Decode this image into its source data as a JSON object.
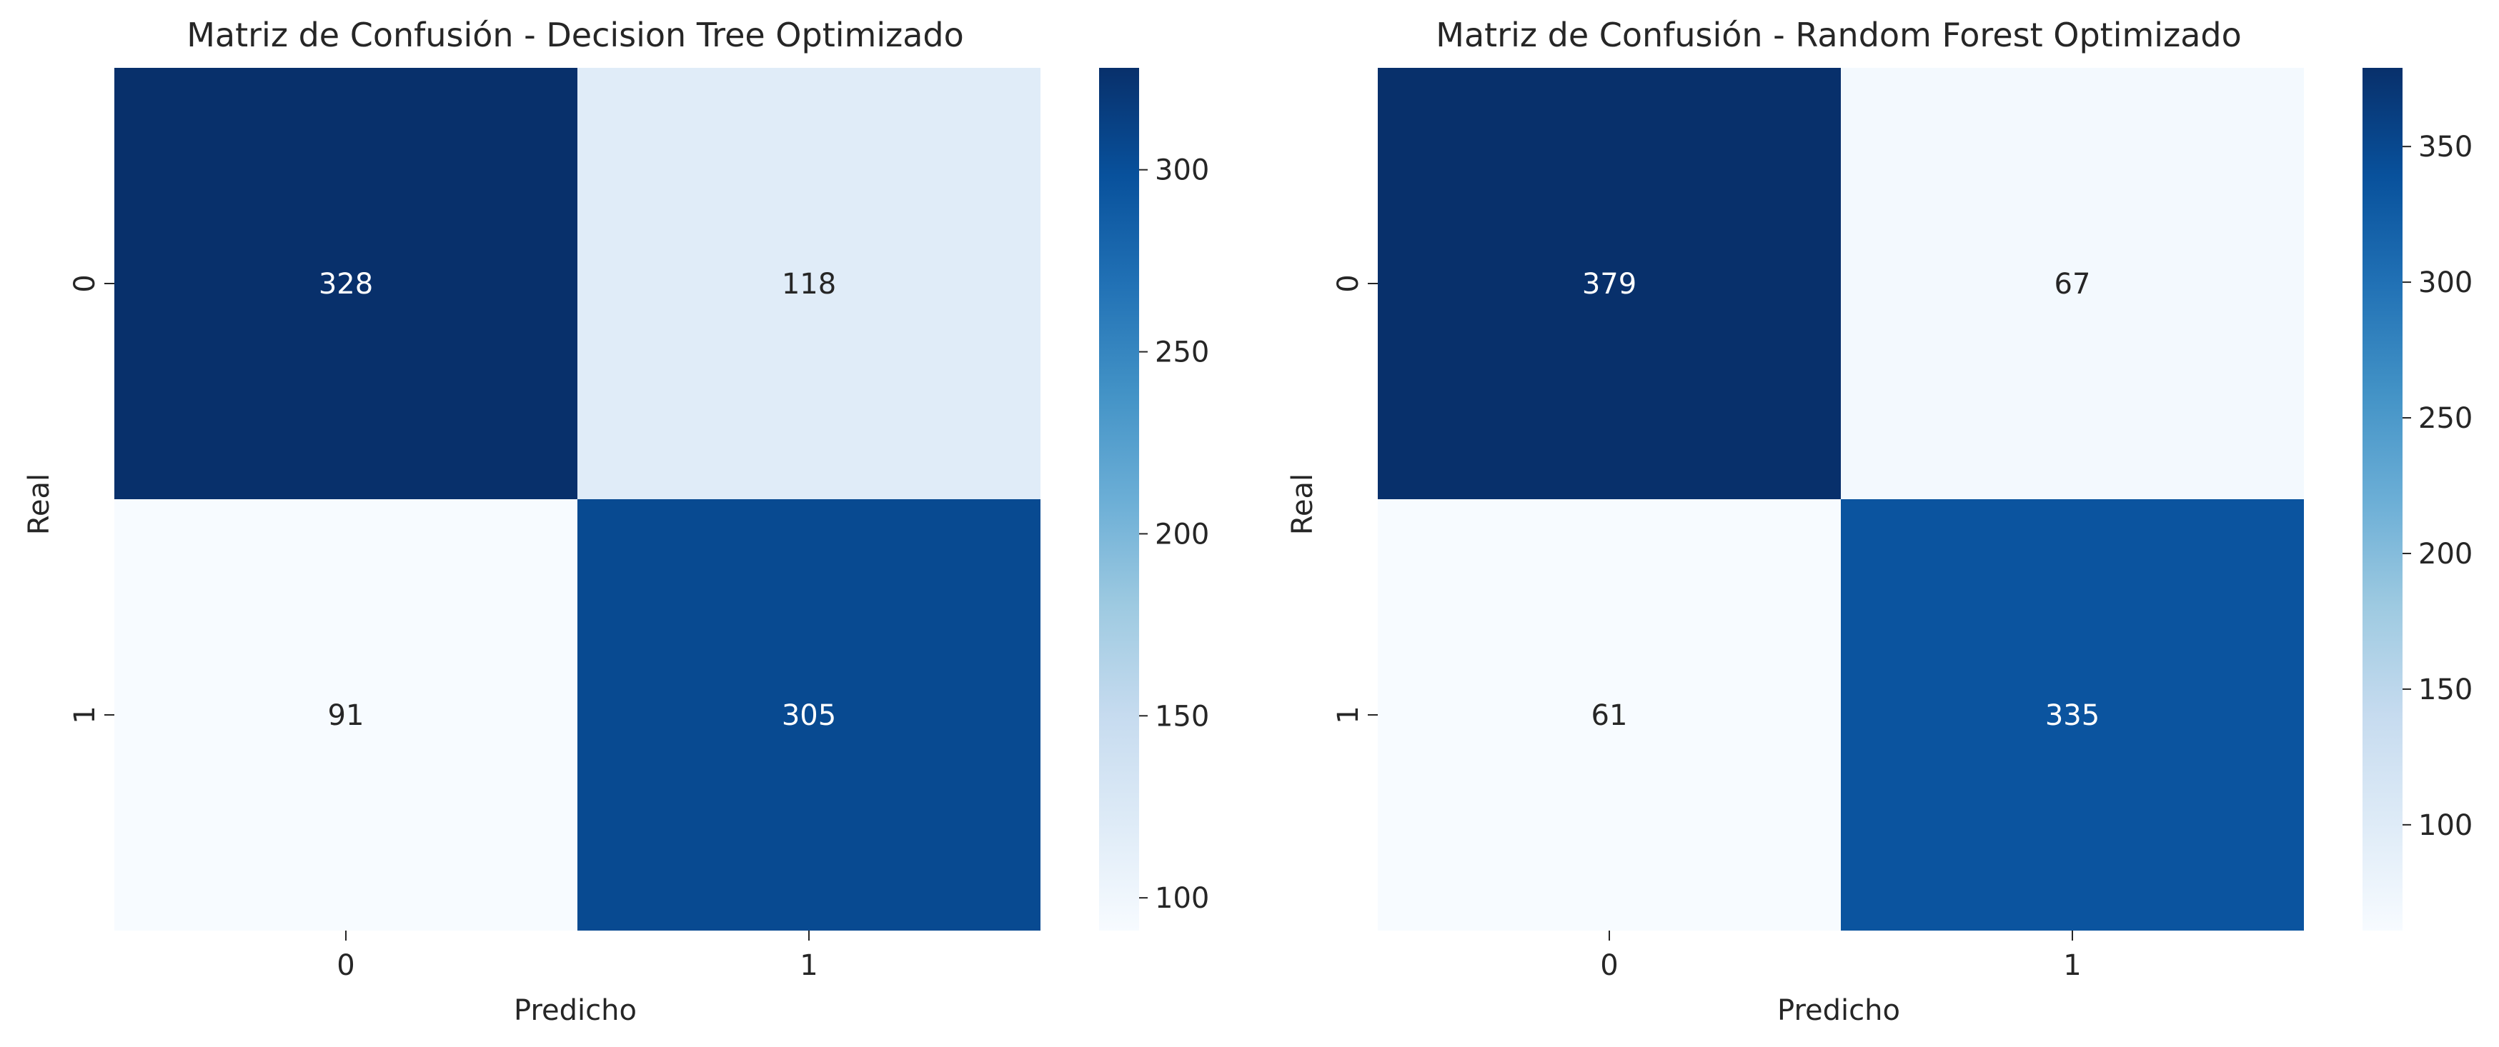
{
  "chart_data": [
    {
      "type": "heatmap",
      "title": "Matriz de Confusión - Decision Tree Optimizado",
      "xlabel": "Predicho",
      "ylabel": "Real",
      "x_categories": [
        "0",
        "1"
      ],
      "y_categories": [
        "0",
        "1"
      ],
      "values": [
        [
          328,
          118
        ],
        [
          91,
          305
        ]
      ],
      "colormap": "Blues",
      "color_range": [
        91,
        328
      ],
      "colorbar_ticks": [
        100,
        150,
        200,
        250,
        300
      ]
    },
    {
      "type": "heatmap",
      "title": "Matriz de Confusión - Random Forest Optimizado",
      "xlabel": "Predicho",
      "ylabel": "Real",
      "x_categories": [
        "0",
        "1"
      ],
      "y_categories": [
        "0",
        "1"
      ],
      "values": [
        [
          379,
          67
        ],
        [
          61,
          335
        ]
      ],
      "colormap": "Blues",
      "color_range": [
        61,
        379
      ],
      "colorbar_ticks": [
        100,
        150,
        200,
        250,
        300,
        350
      ]
    }
  ]
}
